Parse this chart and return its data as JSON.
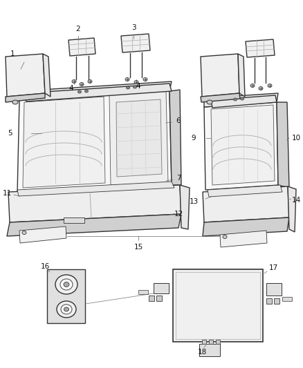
{
  "background_color": "#ffffff",
  "fig_width": 4.38,
  "fig_height": 5.33,
  "dpi": 100,
  "label_fontsize": 7.5,
  "label_color": "#111111",
  "line_color": "#333333",
  "edge_color": "#333333",
  "face_color_light": "#f5f5f5",
  "face_color_mid": "#e8e8e8",
  "face_color_dark": "#d0d0d0",
  "lw_main": 1.0,
  "lw_detail": 0.6,
  "lw_leader": 0.5
}
